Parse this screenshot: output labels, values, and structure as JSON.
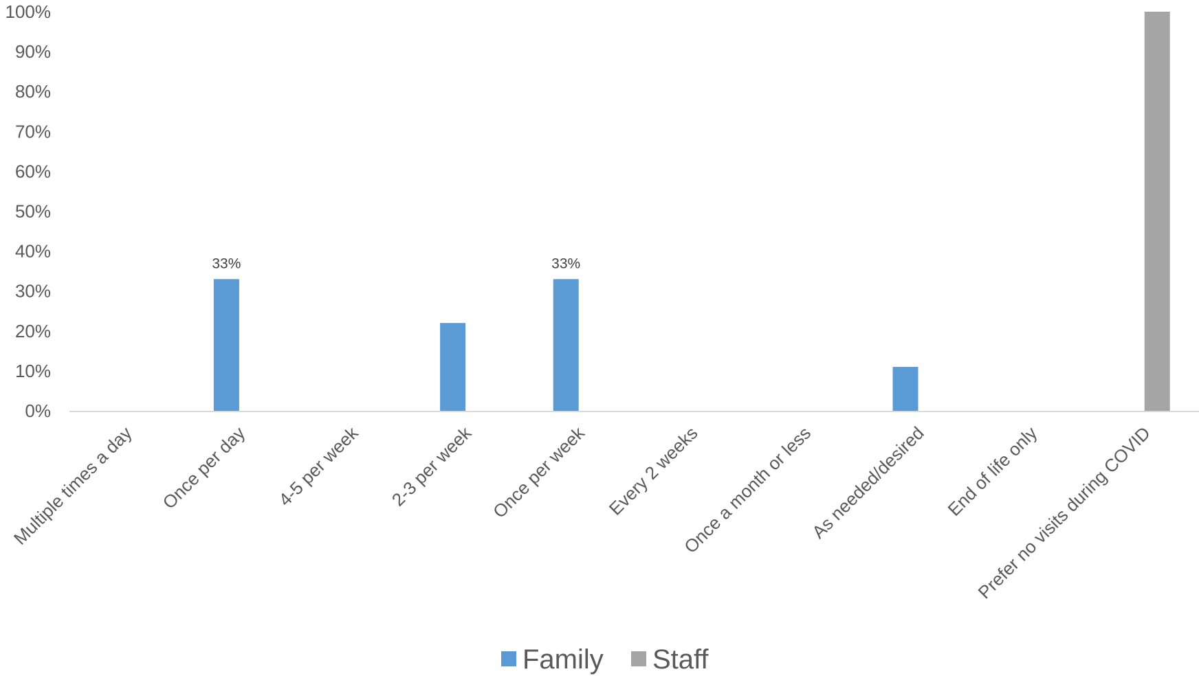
{
  "chart_data": {
    "type": "bar",
    "title": "",
    "xlabel": "",
    "ylabel": "",
    "ylim": [
      0,
      100
    ],
    "y_ticks": [
      "0%",
      "10%",
      "20%",
      "30%",
      "40%",
      "50%",
      "60%",
      "70%",
      "80%",
      "90%",
      "100%"
    ],
    "grid": false,
    "legend_position": "bottom",
    "categories": [
      "Multiple times a day",
      "Once per day",
      "4-5 per week",
      "2-3 per week",
      "Once per week",
      "Every 2 weeks",
      "Once a month or less",
      "As needed/desired",
      "End of life only",
      "Prefer no visits during COVID"
    ],
    "series": [
      {
        "name": "Family",
        "color": "#5B9BD5",
        "values": [
          0,
          33,
          0,
          22,
          33,
          0,
          0,
          11,
          0,
          0
        ],
        "data_labels": [
          "",
          "33%",
          "",
          "",
          "33%",
          "",
          "",
          "",
          "",
          ""
        ]
      },
      {
        "name": "Staff",
        "color": "#A5A5A5",
        "values": [
          0,
          0,
          0,
          0,
          0,
          0,
          0,
          0,
          0,
          100
        ],
        "data_labels": [
          "",
          "",
          "",
          "",
          "",
          "",
          "",
          "",
          "",
          ""
        ]
      }
    ]
  }
}
